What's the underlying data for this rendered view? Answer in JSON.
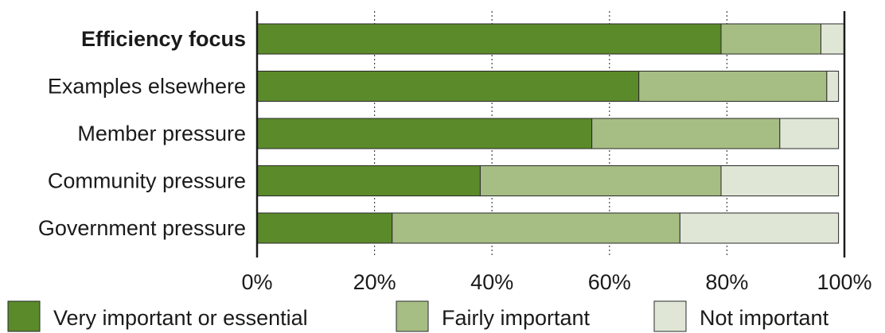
{
  "chart_data": {
    "type": "bar",
    "orientation": "horizontal",
    "stacked": true,
    "categories": [
      "Efficiency focus",
      "Examples elsewhere",
      "Member pressure",
      "Community pressure",
      "Government pressure"
    ],
    "highlighted_category": "Efficiency focus",
    "series": [
      {
        "name": "Very important or essential",
        "color": "#5b8a2a",
        "values": [
          79,
          65,
          57,
          38,
          23
        ]
      },
      {
        "name": "Fairly important",
        "color": "#a6bd84",
        "values": [
          17,
          32,
          32,
          41,
          49
        ]
      },
      {
        "name": "Not important",
        "color": "#dfe6d5",
        "values": [
          4,
          2,
          10,
          20,
          27
        ]
      }
    ],
    "xlim": [
      0,
      100
    ],
    "xticks": [
      0,
      20,
      40,
      60,
      80,
      100
    ],
    "xtick_labels": [
      "0%",
      "20%",
      "40%",
      "60%",
      "80%",
      "100%"
    ],
    "grid": "vertical-dotted",
    "legend_position": "bottom"
  }
}
